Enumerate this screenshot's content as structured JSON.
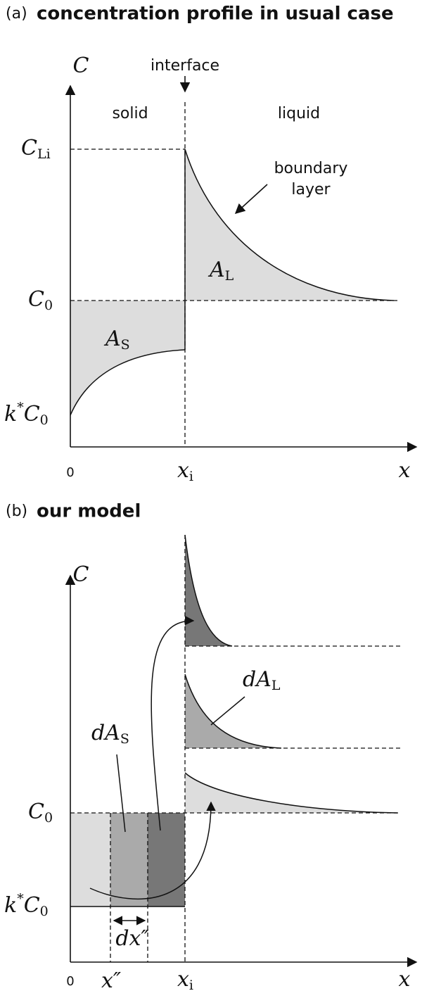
{
  "panel_a": {
    "tag": "(a)",
    "title": "concentration profile in usual case",
    "y_axis": "C",
    "x_axis": "x",
    "origin": "0",
    "interface": "interface",
    "solid": "solid",
    "liquid": "liquid",
    "boundary_layer": [
      "boundary",
      "layer"
    ],
    "c_li": {
      "symbol": "C",
      "subscript": "Li"
    },
    "c0": {
      "symbol": "C",
      "subscript": "0"
    },
    "k_c0": {
      "prefix": "k",
      "superscript": "*",
      "symbol": "C",
      "subscript": "0"
    },
    "a_l": {
      "symbol": "A",
      "subscript": "L"
    },
    "a_s": {
      "symbol": "A",
      "subscript": "S"
    },
    "x_i": {
      "symbol": "x",
      "subscript": "i"
    }
  },
  "panel_b": {
    "tag": "(b)",
    "title": "our model",
    "y_axis": "C",
    "x_axis": "x",
    "origin": "0",
    "c0": {
      "symbol": "C",
      "subscript": "0"
    },
    "k_c0": {
      "prefix": "k",
      "superscript": "*",
      "symbol": "C",
      "subscript": "0"
    },
    "da_l": {
      "symbol": "dA",
      "subscript": "L"
    },
    "da_s": {
      "symbol": "dA",
      "subscript": "S"
    },
    "dx": "dx″",
    "x_pp": "x″",
    "x_i": {
      "symbol": "x",
      "subscript": "i"
    }
  }
}
